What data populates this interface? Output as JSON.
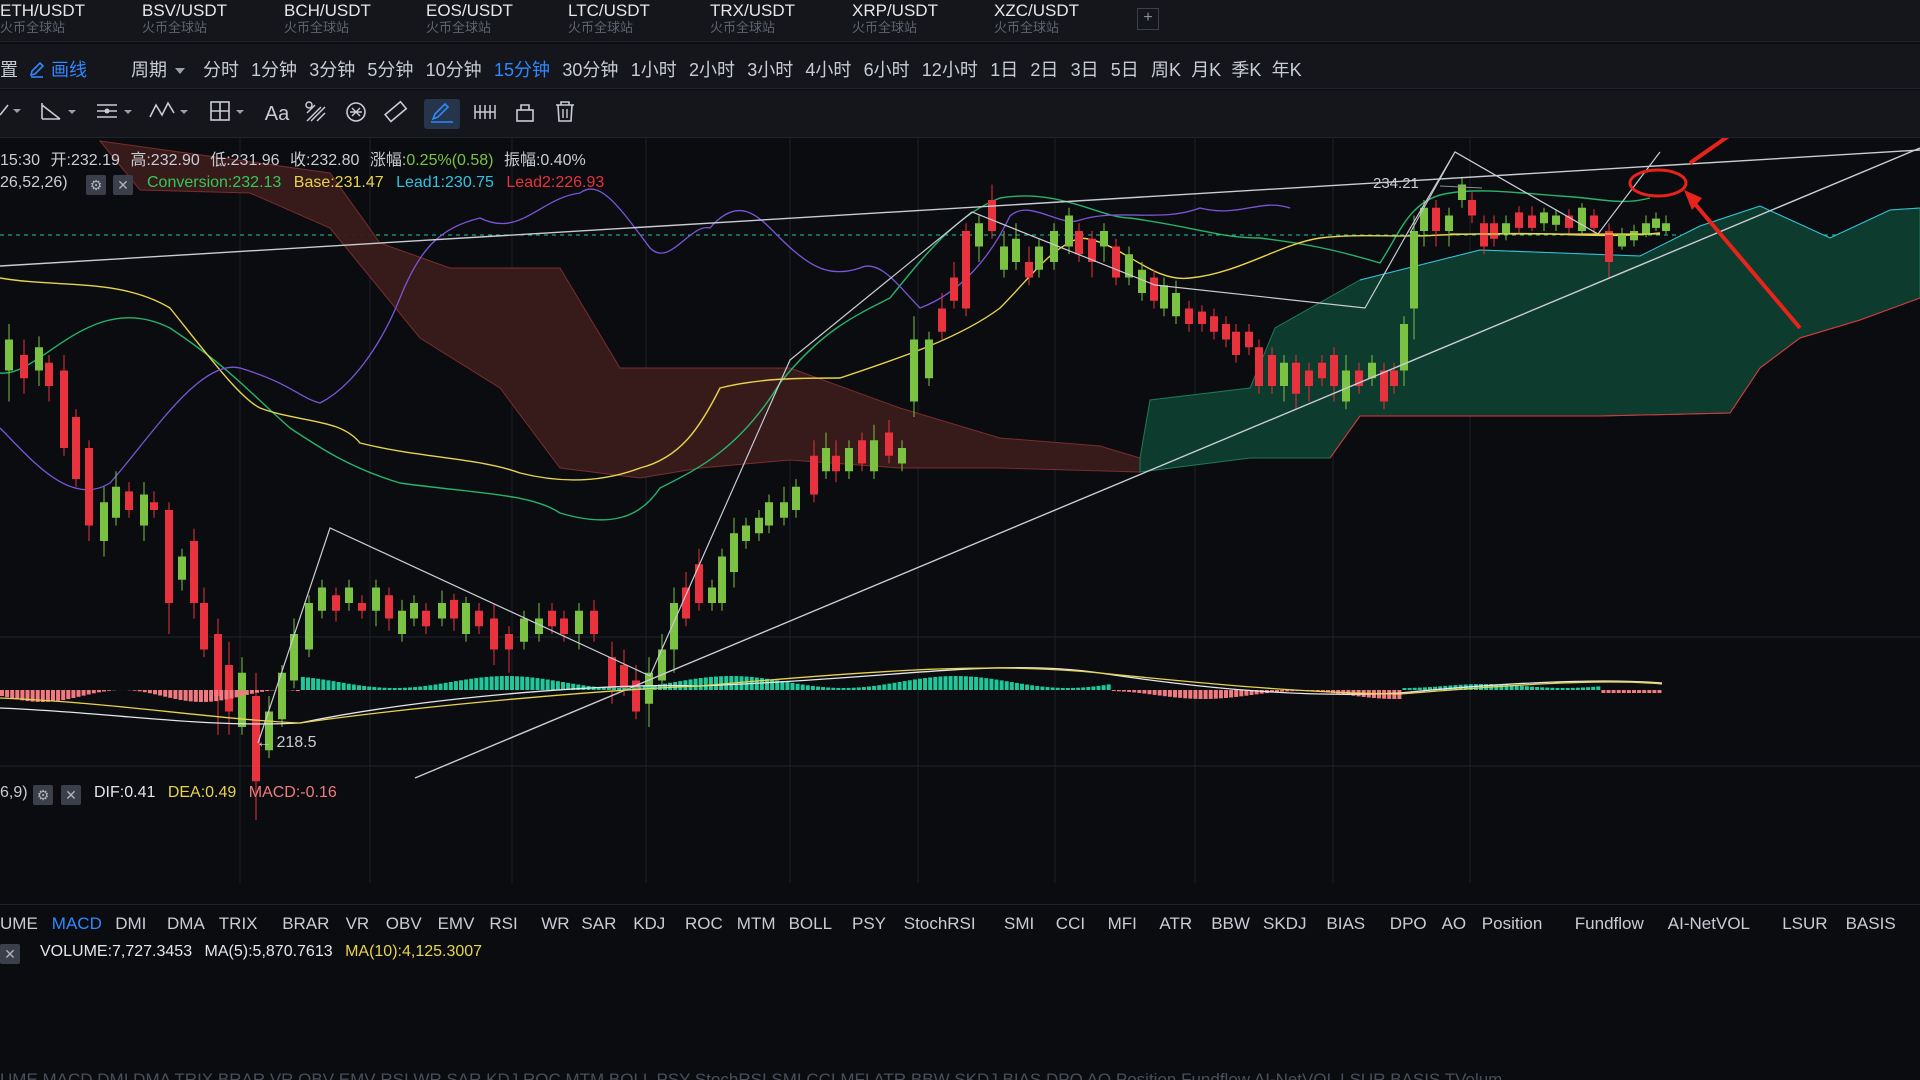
{
  "symbols": [
    {
      "sym": "ETH/USDT",
      "src": "火币全球站"
    },
    {
      "sym": "BSV/USDT",
      "src": "火币全球站"
    },
    {
      "sym": "BCH/USDT",
      "src": "火币全球站"
    },
    {
      "sym": "EOS/USDT",
      "src": "火币全球站"
    },
    {
      "sym": "LTC/USDT",
      "src": "火币全球站"
    },
    {
      "sym": "TRX/USDT",
      "src": "火币全球站"
    },
    {
      "sym": "XRP/USDT",
      "src": "火币全球站"
    },
    {
      "sym": "XZC/USDT",
      "src": "火币全球站"
    }
  ],
  "add_tab": "+",
  "toolbar": {
    "settings_partial": "置",
    "draw_line_label": "画线",
    "period_label": "周期",
    "periods": [
      "分时",
      "1分钟",
      "3分钟",
      "5分钟",
      "10分钟",
      "15分钟",
      "30分钟",
      "1小时",
      "2小时",
      "3小时",
      "4小时",
      "6小时",
      "12小时",
      "1日",
      "2日",
      "3日",
      "5日",
      "周K",
      "月K",
      "季K",
      "年K"
    ],
    "active_period": "15分钟",
    "text_tool": "Aa"
  },
  "ohlc": {
    "time": "15:30",
    "open_label": "开:",
    "open": "232.19",
    "high_label": "高:",
    "high": "232.90",
    "low_label": "低:",
    "low": "231.96",
    "close_label": "收:",
    "close": "232.80",
    "change_label": "涨幅:",
    "change": "0.25%(0.58)",
    "amp_label": "振幅:",
    "amp": "0.40%"
  },
  "ichimoku": {
    "params": "26,52,26)",
    "conversion": "Conversion:232.13",
    "base": "Base:231.47",
    "lead1": "Lead1:230.75",
    "lead2": "Lead2:226.93"
  },
  "annotations": {
    "high_marker": "234.21",
    "low_marker": "218.5"
  },
  "macd": {
    "params": "6,9)",
    "dif": "DIF:0.41",
    "dea": "DEA:0.49",
    "macd": "MACD:-0.16"
  },
  "indicators": [
    "UME",
    "MACD",
    "DMI",
    "DMA",
    "TRIX",
    "BRAR",
    "VR",
    "OBV",
    "EMV",
    "RSI",
    "WR",
    "SAR",
    "KDJ",
    "ROC",
    "MTM",
    "BOLL",
    "PSY",
    "StochRSI",
    "SMI",
    "CCI",
    "MFI",
    "ATR",
    "BBW",
    "SKDJ",
    "BIAS",
    "DPO",
    "AO",
    "Position",
    "Fundflow",
    "AI-NetVOL",
    "LSUR",
    "BASIS",
    "TVolum"
  ],
  "active_indicator": "MACD",
  "volume": {
    "volume": "VOLUME:7,727.3453",
    "ma5": "MA(5):5,870.7613",
    "ma10": "MA(10):4,125.3007"
  },
  "ghost_indicators": "UME  MACD  DMI  DMA  TRIX  BRAR  VR  OBV  EMV  RSI  WR  SAR  KDJ  ROC  MTM  BOLL  PSY  StochRSI  SMI  CCI  MFI  ATR  BBW  SKDJ  BIAS  DPO  AO  Position  Fundflow  AI-NetVOL  LSUR  BASIS  TVolum",
  "colors": {
    "up": "#7cc242",
    "down": "#e8323e",
    "accent": "#2f88ff",
    "conversion": "#34c759",
    "base": "#e8d44a",
    "lead1": "#33c1e0",
    "lead2": "#e8323e",
    "macd_pos": "#1fc79a",
    "macd_neg": "#f07a80",
    "annotation": "#e8241a"
  }
}
